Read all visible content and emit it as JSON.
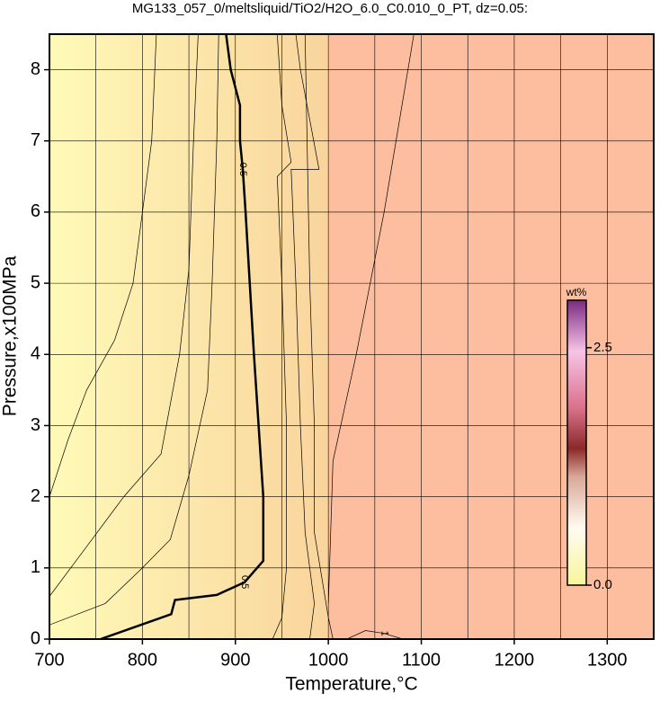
{
  "chart_data": {
    "type": "contour",
    "title": "MG133_057_0/meltsliquid/TiO2/H2O_6.0_C0.010_0_PT, dz=0.05:",
    "xlabel": "Temperature,°C",
    "ylabel": "Pressure,x100MPa",
    "xlim": [
      700,
      1350
    ],
    "ylim": [
      0,
      8.5
    ],
    "xticks": [
      700,
      800,
      900,
      1000,
      1100,
      1200,
      1300
    ],
    "yticks": [
      0,
      1,
      2,
      3,
      4,
      5,
      6,
      7,
      8
    ],
    "xgrid": [
      750,
      850,
      950,
      1050,
      1150,
      1250
    ],
    "grid": true,
    "line_color": "#000000",
    "contours": [
      {
        "x": [
          700,
          720,
          740,
          770,
          790,
          800,
          810,
          815
        ],
        "y": [
          2.0,
          2.8,
          3.5,
          4.2,
          5.0,
          6.0,
          7.0,
          8.5
        ]
      },
      {
        "x": [
          700,
          740,
          780,
          820,
          840,
          850,
          855,
          860
        ],
        "y": [
          0.6,
          1.3,
          2.0,
          2.6,
          4.0,
          5.2,
          7.0,
          8.5
        ]
      },
      {
        "x": [
          700,
          760,
          800,
          830,
          850,
          870,
          875,
          880,
          882
        ],
        "y": [
          0.2,
          0.5,
          1.0,
          1.4,
          2.3,
          3.5,
          5.0,
          7.0,
          8.5
        ]
      },
      {
        "x": [
          755,
          831,
          835,
          880,
          910,
          930,
          930,
          920,
          911,
          908,
          905,
          905,
          895,
          890
        ],
        "y": [
          0,
          0.35,
          0.55,
          0.62,
          0.8,
          1.1,
          2.0,
          4.0,
          6.0,
          6.6,
          7.0,
          7.5,
          8.0,
          8.5
        ],
        "bold": true,
        "labels": [
          "0.5",
          "0.5"
        ]
      },
      {
        "x": [
          940,
          950,
          955,
          955,
          950,
          945,
          960,
          950,
          945
        ],
        "y": [
          0,
          0.3,
          1.0,
          3.0,
          5.0,
          6.5,
          6.7,
          7.5,
          8.5
        ]
      },
      {
        "x": [
          980,
          985,
          975,
          970,
          965,
          960,
          990,
          970,
          965
        ],
        "y": [
          0,
          0.5,
          1.5,
          3.0,
          5.0,
          6.6,
          6.6,
          8.0,
          8.5
        ]
      },
      {
        "x": [
          1005,
          1000,
          985,
          985,
          980,
          975
        ],
        "y": [
          0,
          0.3,
          1.5,
          3.0,
          5.0,
          8.5
        ]
      },
      {
        "x": [
          1000,
          1005,
          1030,
          1060,
          1092
        ],
        "y": [
          0.5,
          2.5,
          4.0,
          6.0,
          8.5
        ]
      },
      {
        "x": [
          1020,
          1040,
          1060,
          1080
        ],
        "y": [
          0,
          0.12,
          0.08,
          0
        ],
        "labels": [
          "1"
        ]
      }
    ],
    "colorbar": {
      "title": "wt%",
      "lim": [
        0,
        3.0
      ],
      "ticks": [
        {
          "value": 0,
          "label": "0.0"
        },
        2.5
      ]
    }
  }
}
